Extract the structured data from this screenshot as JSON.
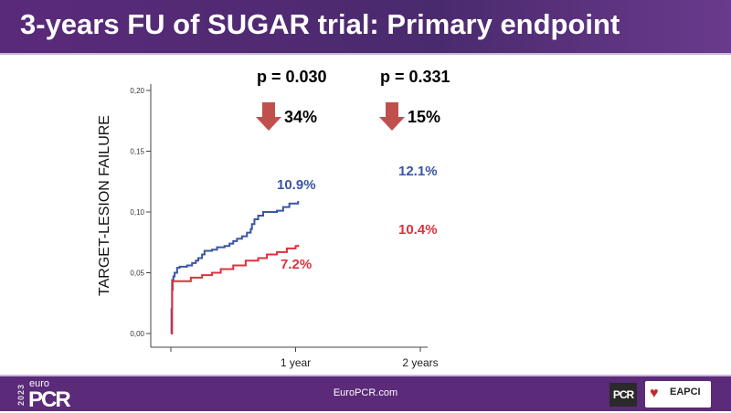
{
  "header": {
    "title": "3-years FU of SUGAR trial: Primary endpoint"
  },
  "annotations": {
    "p1": "p = 0.030",
    "p2": "p = 0.331",
    "reduction1": "34%",
    "reduction2": "15%",
    "blue_1y": "10.9%",
    "red_1y": "7.2%",
    "blue_2y": "12.1%",
    "red_2y": "10.4%"
  },
  "footer": {
    "year": "2023",
    "logo_small": "euro",
    "logo_big": "PCR",
    "site": "EuroPCR.com",
    "pcr_badge": "PCR",
    "eapci": "EAPCI"
  },
  "colors": {
    "blue": "#3a55a4",
    "red": "#e0303c",
    "arrow": "#c0504d",
    "header": "#4e2a72"
  },
  "chart_data": {
    "type": "line",
    "ylabel": "TARGET-LESION FAILURE",
    "ylim": [
      0,
      0.2
    ],
    "yticks": [
      "0,00",
      "0,05",
      "0,10",
      "0,15",
      "0,20"
    ],
    "xticks": [
      "",
      "1 year",
      "2 years"
    ],
    "xlim": [
      0,
      2
    ],
    "series": [
      {
        "color": "#3a55a4",
        "points": [
          [
            0,
            0
          ],
          [
            0.005,
            0.02
          ],
          [
            0.01,
            0.044
          ],
          [
            0.02,
            0.047
          ],
          [
            0.03,
            0.05
          ],
          [
            0.05,
            0.054
          ],
          [
            0.07,
            0.055
          ],
          [
            0.13,
            0.056
          ],
          [
            0.17,
            0.058
          ],
          [
            0.2,
            0.06
          ],
          [
            0.22,
            0.062
          ],
          [
            0.25,
            0.065
          ],
          [
            0.27,
            0.068
          ],
          [
            0.33,
            0.069
          ],
          [
            0.37,
            0.071
          ],
          [
            0.43,
            0.072
          ],
          [
            0.47,
            0.074
          ],
          [
            0.5,
            0.076
          ],
          [
            0.53,
            0.078
          ],
          [
            0.57,
            0.08
          ],
          [
            0.61,
            0.083
          ],
          [
            0.64,
            0.086
          ],
          [
            0.65,
            0.09
          ],
          [
            0.67,
            0.094
          ],
          [
            0.7,
            0.097
          ],
          [
            0.74,
            0.1
          ],
          [
            0.85,
            0.101
          ],
          [
            0.9,
            0.104
          ],
          [
            0.95,
            0.107
          ],
          [
            1.02,
            0.109
          ]
        ]
      },
      {
        "color": "#e0303c",
        "points": [
          [
            0,
            0
          ],
          [
            0.01,
            0.036
          ],
          [
            0.015,
            0.043
          ],
          [
            0.15,
            0.043
          ],
          [
            0.16,
            0.046
          ],
          [
            0.25,
            0.048
          ],
          [
            0.33,
            0.05
          ],
          [
            0.4,
            0.053
          ],
          [
            0.5,
            0.056
          ],
          [
            0.6,
            0.06
          ],
          [
            0.7,
            0.062
          ],
          [
            0.77,
            0.065
          ],
          [
            0.85,
            0.067
          ],
          [
            0.93,
            0.07
          ],
          [
            1.0,
            0.072
          ],
          [
            1.02,
            0.073
          ]
        ]
      }
    ]
  }
}
